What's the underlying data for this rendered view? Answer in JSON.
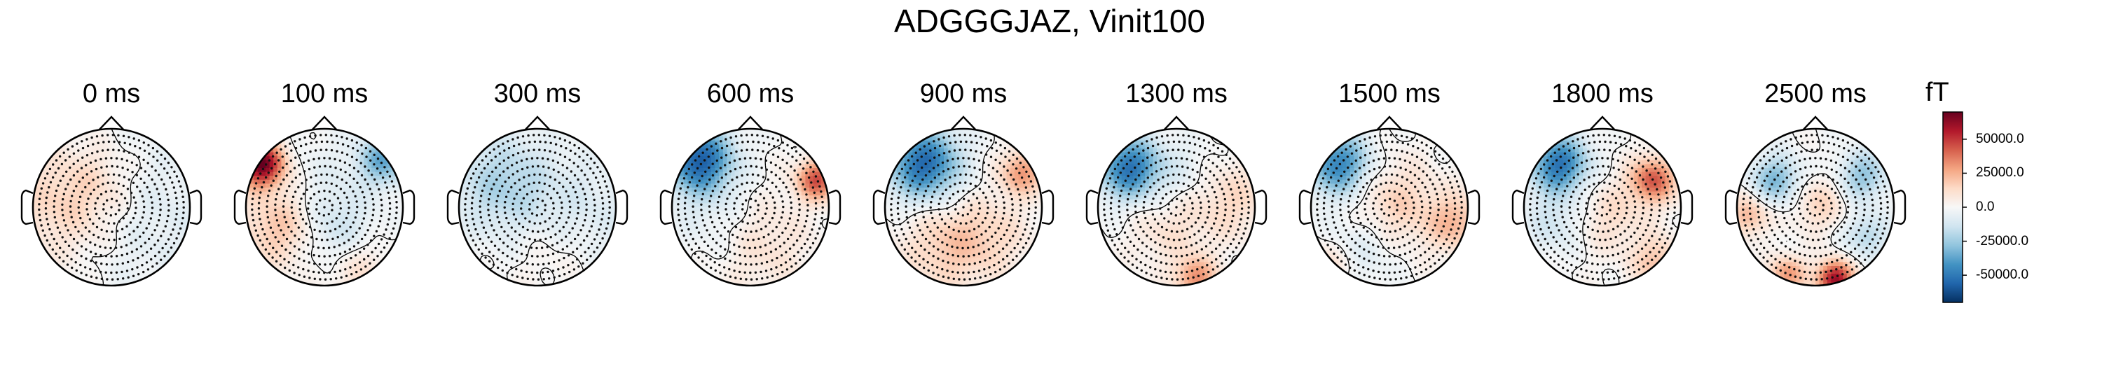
{
  "figure": {
    "title": "ADGGGJAZ, Vinit100"
  },
  "colorbar": {
    "unit": "fT",
    "ticks": [
      {
        "value": 50000,
        "label": "50000.0"
      },
      {
        "value": 25000,
        "label": "25000.0"
      },
      {
        "value": 0,
        "label": "0.0"
      },
      {
        "value": -25000,
        "label": "-25000.0"
      },
      {
        "value": -50000,
        "label": "-50000.0"
      }
    ],
    "range": [
      -70000,
      70000
    ],
    "colormap": "RdBu_r",
    "colors": {
      "max": "#67001f",
      "mid": "#f7f7f7",
      "min": "#053061"
    }
  },
  "chart_data": {
    "type": "heatmap",
    "subtype": "topomap-series",
    "title": "ADGGGJAZ, Vinit100",
    "unit": "fT",
    "vlim": [
      -70000,
      70000
    ],
    "sensors_shown": true,
    "contours": true,
    "panels": [
      {
        "time_ms": 0,
        "label": "0 ms",
        "sources": [
          {
            "x": -0.55,
            "y": 0.05,
            "value": 18000,
            "spread": 0.5
          },
          {
            "x": 0.4,
            "y": -0.1,
            "value": -9000,
            "spread": 0.7
          },
          {
            "x": -0.1,
            "y": 0.35,
            "value": 6000,
            "spread": 0.3
          }
        ]
      },
      {
        "time_ms": 100,
        "label": "100 ms",
        "sources": [
          {
            "x": -0.8,
            "y": 0.55,
            "value": 70000,
            "spread": 0.2
          },
          {
            "x": 0.75,
            "y": 0.6,
            "value": -35000,
            "spread": 0.22
          },
          {
            "x": -0.55,
            "y": -0.25,
            "value": 22000,
            "spread": 0.35
          },
          {
            "x": 0.15,
            "y": -0.35,
            "value": -16000,
            "spread": 0.35
          },
          {
            "x": 0.4,
            "y": -0.75,
            "value": 14000,
            "spread": 0.3
          },
          {
            "x": 0.0,
            "y": 0.3,
            "value": -6000,
            "spread": 0.45
          }
        ]
      },
      {
        "time_ms": 300,
        "label": "300 ms",
        "sources": [
          {
            "x": -0.45,
            "y": 0.3,
            "value": -22000,
            "spread": 0.45
          },
          {
            "x": 0.6,
            "y": -0.05,
            "value": -10000,
            "spread": 0.5
          },
          {
            "x": 0.2,
            "y": -0.55,
            "value": 6000,
            "spread": 0.35
          }
        ]
      },
      {
        "time_ms": 600,
        "label": "600 ms",
        "sources": [
          {
            "x": -0.65,
            "y": 0.6,
            "value": -58000,
            "spread": 0.3
          },
          {
            "x": 0.85,
            "y": 0.35,
            "value": 45000,
            "spread": 0.18
          },
          {
            "x": 0.1,
            "y": -0.45,
            "value": 12000,
            "spread": 0.45
          },
          {
            "x": -0.4,
            "y": -0.2,
            "value": -9000,
            "spread": 0.4
          }
        ]
      },
      {
        "time_ms": 900,
        "label": "900 ms",
        "sources": [
          {
            "x": -0.5,
            "y": 0.55,
            "value": -55000,
            "spread": 0.32
          },
          {
            "x": 0.75,
            "y": 0.45,
            "value": 30000,
            "spread": 0.2
          },
          {
            "x": -0.2,
            "y": -0.5,
            "value": 18000,
            "spread": 0.4
          },
          {
            "x": 0.4,
            "y": -0.35,
            "value": 10000,
            "spread": 0.35
          }
        ]
      },
      {
        "time_ms": 1300,
        "label": "1300 ms",
        "sources": [
          {
            "x": -0.6,
            "y": 0.5,
            "value": -52000,
            "spread": 0.28
          },
          {
            "x": 0.7,
            "y": 0.1,
            "value": 14000,
            "spread": 0.35
          },
          {
            "x": 0.25,
            "y": -0.9,
            "value": 32000,
            "spread": 0.18
          },
          {
            "x": -0.1,
            "y": -0.3,
            "value": 10000,
            "spread": 0.35
          },
          {
            "x": 0.1,
            "y": 0.45,
            "value": -8000,
            "spread": 0.3
          }
        ]
      },
      {
        "time_ms": 1500,
        "label": "1500 ms",
        "sources": [
          {
            "x": -0.65,
            "y": 0.55,
            "value": -48000,
            "spread": 0.28
          },
          {
            "x": 0.05,
            "y": 0.0,
            "value": 18000,
            "spread": 0.4
          },
          {
            "x": 0.85,
            "y": -0.2,
            "value": 22000,
            "spread": 0.25
          },
          {
            "x": -0.3,
            "y": -0.45,
            "value": -12000,
            "spread": 0.35
          },
          {
            "x": -0.8,
            "y": -0.75,
            "value": 14000,
            "spread": 0.2
          }
        ]
      },
      {
        "time_ms": 1800,
        "label": "1800 ms",
        "sources": [
          {
            "x": -0.55,
            "y": 0.55,
            "value": -52000,
            "spread": 0.26
          },
          {
            "x": 0.65,
            "y": 0.35,
            "value": 42000,
            "spread": 0.2
          },
          {
            "x": 0.1,
            "y": -0.1,
            "value": 12000,
            "spread": 0.35
          },
          {
            "x": -0.6,
            "y": -0.2,
            "value": -14000,
            "spread": 0.28
          },
          {
            "x": 0.7,
            "y": -0.7,
            "value": 20000,
            "spread": 0.22
          }
        ]
      },
      {
        "time_ms": 2500,
        "label": "2500 ms",
        "sources": [
          {
            "x": -0.5,
            "y": 0.35,
            "value": -32000,
            "spread": 0.22
          },
          {
            "x": 0.6,
            "y": 0.4,
            "value": -28000,
            "spread": 0.22
          },
          {
            "x": 0.25,
            "y": -0.92,
            "value": 62000,
            "spread": 0.16
          },
          {
            "x": -0.35,
            "y": -0.85,
            "value": 30000,
            "spread": 0.16
          },
          {
            "x": 0.05,
            "y": 0.05,
            "value": 15000,
            "spread": 0.25
          },
          {
            "x": 0.65,
            "y": -0.35,
            "value": -20000,
            "spread": 0.2
          },
          {
            "x": -0.85,
            "y": -0.1,
            "value": 24000,
            "spread": 0.18
          }
        ]
      }
    ]
  }
}
